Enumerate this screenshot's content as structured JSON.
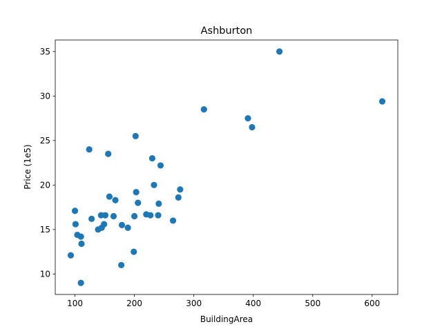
{
  "chart_data": {
    "type": "scatter",
    "title": "Ashburton",
    "xlabel": "BuildingArea",
    "ylabel": "Price (1e5)",
    "xlim": [
      66.85,
      643.15
    ],
    "ylim": [
      7.7,
      36.3
    ],
    "xticks": [
      100,
      200,
      300,
      400,
      500,
      600
    ],
    "yticks": [
      10,
      15,
      20,
      25,
      30,
      35
    ],
    "grid": false,
    "series": [
      {
        "color": "#1f77b4",
        "points": [
          [
            93,
            12.1
          ],
          [
            100,
            17.1
          ],
          [
            101,
            15.6
          ],
          [
            104,
            14.4
          ],
          [
            110,
            9.0
          ],
          [
            110,
            14.2
          ],
          [
            111,
            13.4
          ],
          [
            124,
            24.0
          ],
          [
            128,
            16.2
          ],
          [
            139,
            15.0
          ],
          [
            144,
            16.6
          ],
          [
            145,
            15.2
          ],
          [
            149,
            15.6
          ],
          [
            151,
            16.6
          ],
          [
            156,
            23.5
          ],
          [
            158,
            18.7
          ],
          [
            165,
            16.5
          ],
          [
            168,
            18.3
          ],
          [
            178,
            11.0
          ],
          [
            179,
            15.5
          ],
          [
            189,
            15.2
          ],
          [
            199,
            12.5
          ],
          [
            200,
            16.5
          ],
          [
            202,
            25.5
          ],
          [
            203,
            19.2
          ],
          [
            206,
            18.0
          ],
          [
            220,
            16.7
          ],
          [
            227,
            16.6
          ],
          [
            230,
            23.0
          ],
          [
            233,
            20.0
          ],
          [
            240,
            16.6
          ],
          [
            241,
            17.9
          ],
          [
            244,
            22.2
          ],
          [
            265,
            16.0
          ],
          [
            274,
            18.6
          ],
          [
            277,
            19.5
          ],
          [
            317,
            28.5
          ],
          [
            391,
            27.5
          ],
          [
            398,
            26.5
          ],
          [
            444,
            35.0
          ],
          [
            617,
            29.4
          ]
        ]
      }
    ]
  }
}
